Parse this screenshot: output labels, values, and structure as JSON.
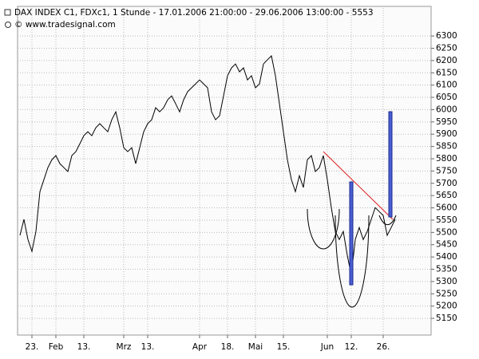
{
  "chart_data": {
    "type": "line",
    "title": "DAX INDEX C1, FDXc1, 1 Stunde - 17.01.2006 21:00:00 - 29.06.2006 13:00:00 - 5553",
    "subtitle": "© www.tradesignal.com",
    "categories": [
      null,
      null,
      null,
      "23.",
      null,
      null,
      null,
      null,
      null,
      "Feb",
      null,
      null,
      null,
      null,
      null,
      null,
      "13.",
      null,
      null,
      null,
      null,
      null,
      null,
      null,
      null,
      null,
      "Mrz",
      null,
      null,
      null,
      null,
      null,
      "13.",
      null,
      null,
      null,
      null,
      null,
      null,
      null,
      null,
      null,
      null,
      null,
      null,
      "Apr",
      null,
      null,
      null,
      null,
      null,
      null,
      "18.",
      null,
      null,
      null,
      null,
      null,
      null,
      "Mai",
      null,
      null,
      null,
      null,
      null,
      null,
      "15.",
      null,
      null,
      null,
      null,
      null,
      null,
      null,
      null,
      null,
      null,
      "Jun",
      null,
      null,
      null,
      null,
      null,
      "12.",
      null,
      null,
      null,
      null,
      null,
      null,
      null,
      "26.",
      null,
      null,
      null
    ],
    "values": [
      5488,
      5553,
      5471,
      5423,
      5504,
      5666,
      5715,
      5764,
      5796,
      5813,
      5780,
      5764,
      5748,
      5813,
      5829,
      5861,
      5894,
      5910,
      5894,
      5926,
      5943,
      5926,
      5910,
      5959,
      5991,
      5926,
      5845,
      5829,
      5845,
      5780,
      5845,
      5910,
      5943,
      5959,
      6008,
      5991,
      6008,
      6040,
      6056,
      6024,
      5991,
      6040,
      6073,
      6089,
      6105,
      6121,
      6105,
      6089,
      5991,
      5959,
      5975,
      6056,
      6138,
      6170,
      6186,
      6154,
      6170,
      6121,
      6138,
      6089,
      6105,
      6186,
      6203,
      6219,
      6138,
      6024,
      5910,
      5796,
      5715,
      5666,
      5731,
      5683,
      5796,
      5813,
      5748,
      5764,
      5813,
      5715,
      5601,
      5504,
      5471,
      5504,
      5407,
      5325,
      5471,
      5520,
      5471,
      5504,
      5553,
      5601,
      5585,
      5569,
      5488,
      5520,
      5553
    ],
    "color": "#000000",
    "ylim": [
      5082,
      6414
    ],
    "yticks": [
      5150,
      5200,
      5250,
      5300,
      5350,
      5400,
      5450,
      5500,
      5550,
      5600,
      5650,
      5700,
      5750,
      5800,
      5850,
      5900,
      5950,
      6000,
      6050,
      6100,
      6150,
      6200,
      6250,
      6300
    ],
    "grid": true
  }
}
